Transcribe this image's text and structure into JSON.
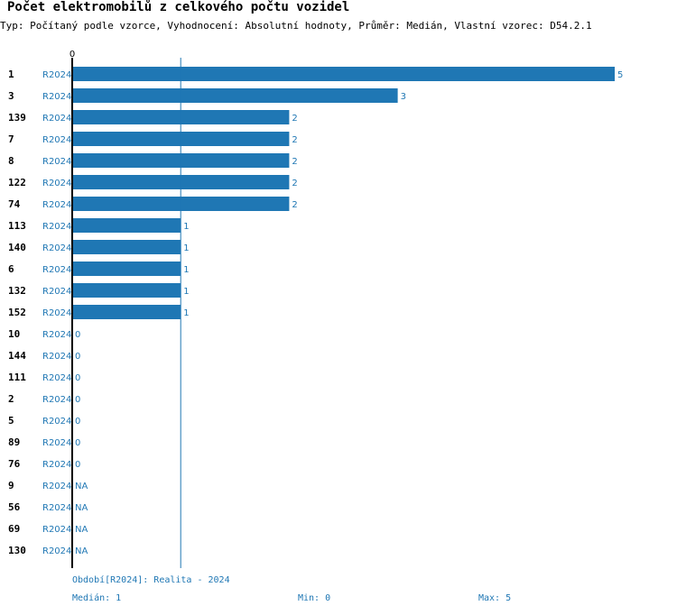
{
  "title": "Počet elektromobilů z celkového počtu vozidel",
  "subtitle": "Typ: Počítaný podle vzorce, Vyhodnocení: Absolutní hodnoty, Průměr: Medián, Vlastní vzorec: D54.2.1",
  "chart_data": {
    "type": "bar",
    "orientation": "horizontal",
    "series_name": "R2024",
    "axis_zero_label": "0",
    "xlim": [
      0,
      5
    ],
    "median": 1,
    "categories": [
      "1",
      "3",
      "139",
      "7",
      "8",
      "122",
      "74",
      "113",
      "140",
      "6",
      "132",
      "152",
      "10",
      "144",
      "111",
      "2",
      "5",
      "89",
      "76",
      "9",
      "56",
      "69",
      "130"
    ],
    "values": [
      5,
      3,
      2,
      2,
      2,
      2,
      2,
      1,
      1,
      1,
      1,
      1,
      0,
      0,
      0,
      0,
      0,
      0,
      0,
      null,
      null,
      null,
      null
    ],
    "value_labels": [
      "5",
      "3",
      "2",
      "2",
      "2",
      "2",
      "2",
      "1",
      "1",
      "1",
      "1",
      "1",
      "0",
      "0",
      "0",
      "0",
      "0",
      "0",
      "0",
      "NA",
      "NA",
      "NA",
      "NA"
    ]
  },
  "footer": {
    "period": "Období[R2024]: Realita - 2024",
    "median": "Medián: 1",
    "min": "Min: 0",
    "max": "Max: 5"
  },
  "colors": {
    "bar": "#1f77b4",
    "text_accent": "#1f77b4",
    "axis": "#000000"
  }
}
